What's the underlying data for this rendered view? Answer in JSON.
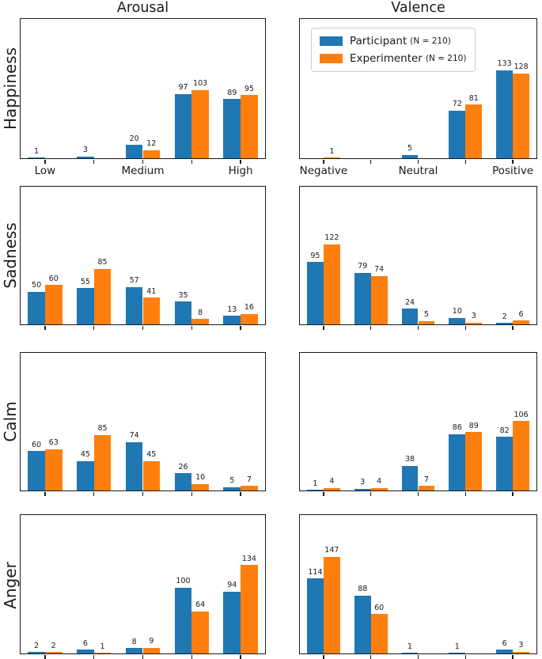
{
  "figure": {
    "column_titles": [
      "Arousal",
      "Valence"
    ],
    "row_labels": [
      "Happiness",
      "Sadness",
      "Calm",
      "Anger"
    ]
  },
  "legend": {
    "position": "upper-left of Happiness-Valence chart",
    "items": [
      {
        "label": "Participant",
        "n": "(N = 210)",
        "color": "#1f77b4"
      },
      {
        "label": "Experimenter",
        "n": "(N = 210)",
        "color": "#ff7f0e"
      }
    ]
  },
  "style": {
    "participant_color": "#1f77b4",
    "experimenter_color": "#ff7f0e",
    "axis_color": "#1a1a1a"
  },
  "chart_data": [
    {
      "type": "bar",
      "row": "Happiness",
      "col": "Arousal",
      "categories": [
        "Low",
        "",
        "Medium",
        "",
        "High"
      ],
      "series": [
        {
          "name": "Participant (N = 210)",
          "values": [
            1,
            3,
            20,
            97,
            89
          ]
        },
        {
          "name": "Experimenter (N = 210)",
          "values": [
            0,
            0,
            12,
            103,
            95
          ]
        }
      ],
      "ylim": [
        0,
        210
      ],
      "show_x_labels": true,
      "bar_labels": true,
      "grid": false
    },
    {
      "type": "bar",
      "row": "Happiness",
      "col": "Valence",
      "categories": [
        "Negative",
        "",
        "Neutral",
        "",
        "Positive"
      ],
      "series": [
        {
          "name": "Participant (N = 210)",
          "values": [
            0,
            0,
            5,
            72,
            133
          ]
        },
        {
          "name": "Experimenter (N = 210)",
          "values": [
            1,
            0,
            0,
            81,
            128
          ]
        }
      ],
      "ylim": [
        0,
        210
      ],
      "show_x_labels": true,
      "bar_labels": true,
      "grid": false
    },
    {
      "type": "bar",
      "row": "Sadness",
      "col": "Arousal",
      "categories": [
        "Low",
        "",
        "Medium",
        "",
        "High"
      ],
      "series": [
        {
          "name": "Participant (N = 210)",
          "values": [
            50,
            55,
            57,
            35,
            13
          ]
        },
        {
          "name": "Experimenter (N = 210)",
          "values": [
            60,
            85,
            41,
            8,
            16
          ]
        }
      ],
      "ylim": [
        0,
        210
      ],
      "show_x_labels": false,
      "bar_labels": true,
      "grid": false
    },
    {
      "type": "bar",
      "row": "Sadness",
      "col": "Valence",
      "categories": [
        "Negative",
        "",
        "Neutral",
        "",
        "Positive"
      ],
      "series": [
        {
          "name": "Participant (N = 210)",
          "values": [
            95,
            79,
            24,
            10,
            2
          ]
        },
        {
          "name": "Experimenter (N = 210)",
          "values": [
            122,
            74,
            5,
            3,
            6
          ]
        }
      ],
      "ylim": [
        0,
        210
      ],
      "show_x_labels": false,
      "bar_labels": true,
      "grid": false
    },
    {
      "type": "bar",
      "row": "Calm",
      "col": "Arousal",
      "categories": [
        "Low",
        "",
        "Medium",
        "",
        "High"
      ],
      "series": [
        {
          "name": "Participant (N = 210)",
          "values": [
            60,
            45,
            74,
            26,
            5
          ]
        },
        {
          "name": "Experimenter (N = 210)",
          "values": [
            63,
            85,
            45,
            10,
            7
          ]
        }
      ],
      "ylim": [
        0,
        210
      ],
      "show_x_labels": false,
      "bar_labels": true,
      "grid": false
    },
    {
      "type": "bar",
      "row": "Calm",
      "col": "Valence",
      "categories": [
        "Negative",
        "",
        "Neutral",
        "",
        "Positive"
      ],
      "series": [
        {
          "name": "Participant (N = 210)",
          "values": [
            1,
            3,
            38,
            86,
            82
          ]
        },
        {
          "name": "Experimenter (N = 210)",
          "values": [
            4,
            4,
            7,
            89,
            106
          ]
        }
      ],
      "ylim": [
        0,
        210
      ],
      "show_x_labels": false,
      "bar_labels": true,
      "grid": false
    },
    {
      "type": "bar",
      "row": "Anger",
      "col": "Arousal",
      "categories": [
        "Low",
        "",
        "Medium",
        "",
        "High"
      ],
      "series": [
        {
          "name": "Participant (N = 210)",
          "values": [
            2,
            6,
            8,
            100,
            94
          ]
        },
        {
          "name": "Experimenter (N = 210)",
          "values": [
            2,
            1,
            9,
            64,
            134
          ]
        }
      ],
      "ylim": [
        0,
        210
      ],
      "show_x_labels": false,
      "bar_labels": true,
      "grid": false
    },
    {
      "type": "bar",
      "row": "Anger",
      "col": "Valence",
      "categories": [
        "Negative",
        "",
        "Neutral",
        "",
        "Positive"
      ],
      "series": [
        {
          "name": "Participant (N = 210)",
          "values": [
            114,
            88,
            1,
            1,
            6
          ]
        },
        {
          "name": "Experimenter (N = 210)",
          "values": [
            147,
            60,
            0,
            0,
            3
          ]
        }
      ],
      "ylim": [
        0,
        210
      ],
      "show_x_labels": false,
      "bar_labels": true,
      "grid": false
    }
  ]
}
